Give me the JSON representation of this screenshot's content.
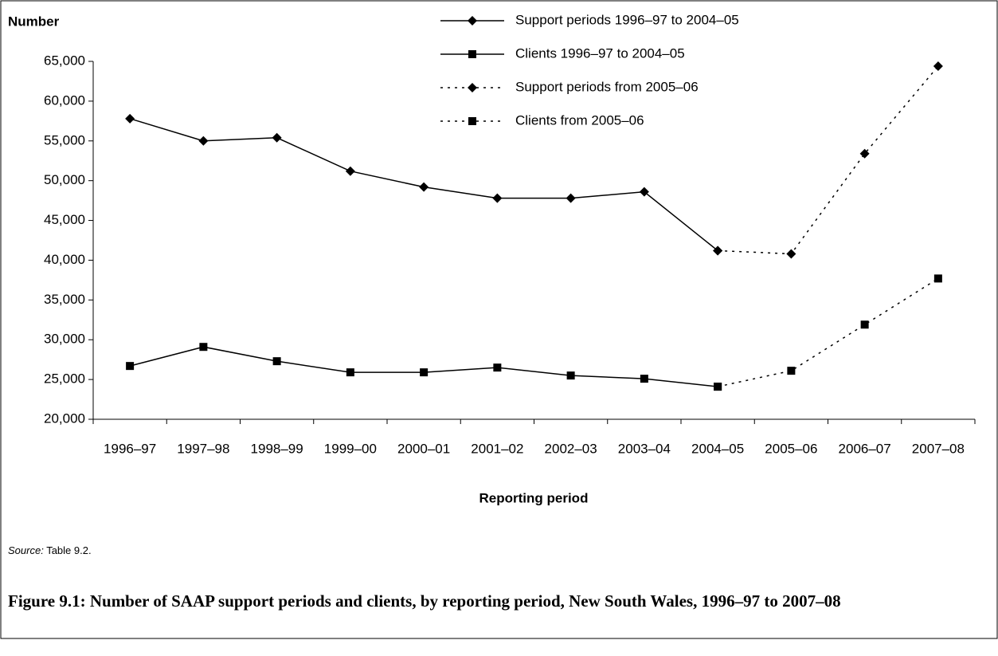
{
  "chart_data": {
    "type": "line",
    "y_label": "Number",
    "x_label": "Reporting period",
    "source_label": "Source:",
    "source_text": "Table 9.2.",
    "caption": "Figure 9.1: Number of SAAP support periods and clients, by reporting period, New South Wales, 1996–97 to 2007–08",
    "categories": [
      "1996–97",
      "1997–98",
      "1998–99",
      "1999–00",
      "2000–01",
      "2001–02",
      "2002–03",
      "2003–04",
      "2004–05",
      "2005–06",
      "2006–07",
      "2007–08"
    ],
    "series": [
      {
        "name": "Support periods 1996–97 to 2004–05",
        "color": "#000000",
        "dash": "solid",
        "marker": "diamond",
        "values": [
          57800,
          55000,
          55400,
          51200,
          49200,
          47800,
          47800,
          48600,
          41200,
          null,
          null,
          null
        ]
      },
      {
        "name": "Clients 1996–97 to 2004–05",
        "color": "#000000",
        "dash": "solid",
        "marker": "square",
        "values": [
          26700,
          29100,
          27300,
          25900,
          25900,
          26500,
          25500,
          25100,
          24100,
          null,
          null,
          null
        ]
      },
      {
        "name": "Support periods from 2005–06",
        "color": "#000000",
        "dash": "dotted",
        "marker": "diamond",
        "values": [
          null,
          null,
          null,
          null,
          null,
          null,
          null,
          null,
          41200,
          40800,
          53400,
          64400
        ]
      },
      {
        "name": "Clients from 2005–06",
        "color": "#000000",
        "dash": "dotted",
        "marker": "square",
        "values": [
          null,
          null,
          null,
          null,
          null,
          null,
          null,
          null,
          24100,
          26100,
          31900,
          37700
        ]
      }
    ],
    "ylim": [
      20000,
      65000
    ],
    "yticks": [
      {
        "value": 20000,
        "label": "20,000"
      },
      {
        "value": 25000,
        "label": "25,000"
      },
      {
        "value": 30000,
        "label": "30,000"
      },
      {
        "value": 35000,
        "label": "35,000"
      },
      {
        "value": 40000,
        "label": "40,000"
      },
      {
        "value": 45000,
        "label": "45,000"
      },
      {
        "value": 50000,
        "label": "50,000"
      },
      {
        "value": 55000,
        "label": "55,000"
      },
      {
        "value": 60000,
        "label": "60,000"
      },
      {
        "value": 65000,
        "label": "65,000"
      }
    ],
    "grid": false
  }
}
